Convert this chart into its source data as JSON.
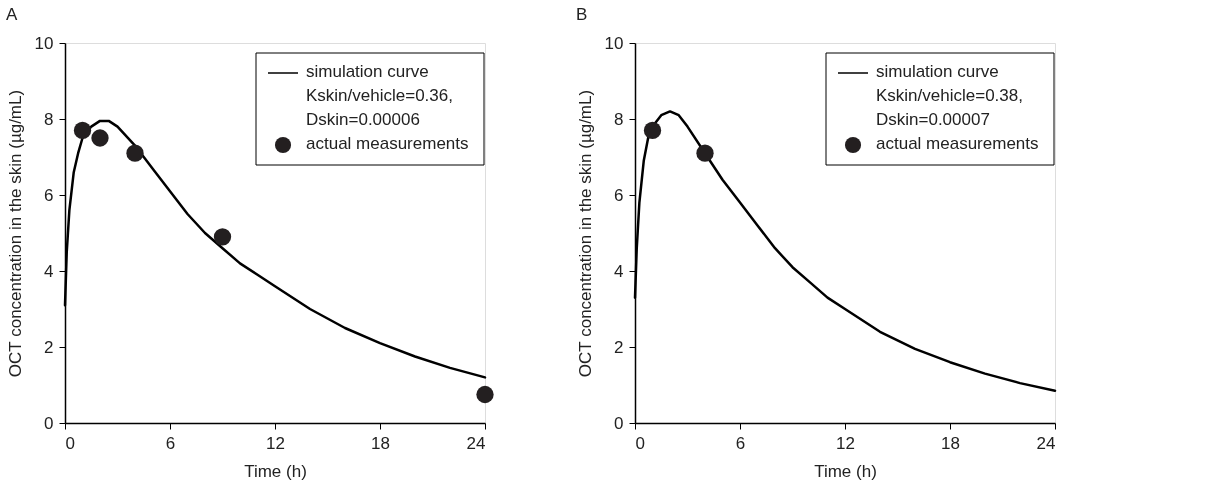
{
  "chart_data": [
    {
      "type": "line",
      "title": "A",
      "xlabel": "Time (h)",
      "ylabel": "OCT concentration in the skin  (µg/mL)",
      "xlim": [
        0,
        24
      ],
      "xticks": [
        0,
        6,
        12,
        18,
        24
      ],
      "ylim": [
        0,
        10
      ],
      "yticks": [
        0,
        2,
        4,
        6,
        8,
        10
      ],
      "grid": false,
      "legend": "top right",
      "series": [
        {
          "name": "simulation curve\nKskin/vehicle=0.36,\nDskin=0.00006",
          "type": "line",
          "line_style": "solid",
          "color": "#000000",
          "x": [
            0,
            0.1,
            0.25,
            0.5,
            0.75,
            1,
            1.5,
            2,
            2.5,
            3,
            4,
            5,
            6,
            7,
            8,
            9,
            10,
            11,
            12,
            14,
            16,
            18,
            20,
            22,
            24
          ],
          "values": [
            3.1,
            4.5,
            5.6,
            6.6,
            7.1,
            7.5,
            7.8,
            7.95,
            7.95,
            7.8,
            7.3,
            6.7,
            6.1,
            5.5,
            5.0,
            4.6,
            4.2,
            3.9,
            3.6,
            3.0,
            2.5,
            2.1,
            1.75,
            1.45,
            1.2
          ]
        },
        {
          "name": "actual measurements",
          "type": "scatter",
          "marker": "circle",
          "color": "#231f20",
          "x": [
            1,
            2,
            4,
            9,
            24
          ],
          "values": [
            7.7,
            7.5,
            7.1,
            4.9,
            0.75
          ]
        }
      ]
    },
    {
      "type": "line",
      "title": "B",
      "xlabel": "Time (h)",
      "ylabel": "OCT concentration in the skin (µg/mL)",
      "xlim": [
        0,
        24
      ],
      "xticks": [
        0,
        6,
        12,
        18,
        24
      ],
      "ylim": [
        0,
        10
      ],
      "yticks": [
        0,
        2,
        4,
        6,
        8,
        10
      ],
      "grid": false,
      "legend": "top right",
      "series": [
        {
          "name": "simulation curve\nKskin/vehicle=0.38,\nDskin=0.00007",
          "type": "line",
          "line_style": "solid",
          "color": "#000000",
          "x": [
            0,
            0.1,
            0.25,
            0.5,
            0.75,
            1,
            1.5,
            2,
            2.5,
            3,
            4,
            5,
            6,
            7,
            8,
            9,
            10,
            11,
            12,
            14,
            16,
            18,
            20,
            22,
            24
          ],
          "values": [
            3.3,
            4.6,
            5.8,
            6.9,
            7.5,
            7.8,
            8.1,
            8.2,
            8.1,
            7.8,
            7.1,
            6.4,
            5.8,
            5.2,
            4.6,
            4.1,
            3.7,
            3.3,
            3.0,
            2.4,
            1.95,
            1.6,
            1.3,
            1.05,
            0.85
          ]
        },
        {
          "name": "actual measurements",
          "type": "scatter",
          "marker": "circle",
          "color": "#231f20",
          "x": [
            1,
            4
          ],
          "values": [
            7.7,
            7.1
          ]
        }
      ]
    }
  ]
}
